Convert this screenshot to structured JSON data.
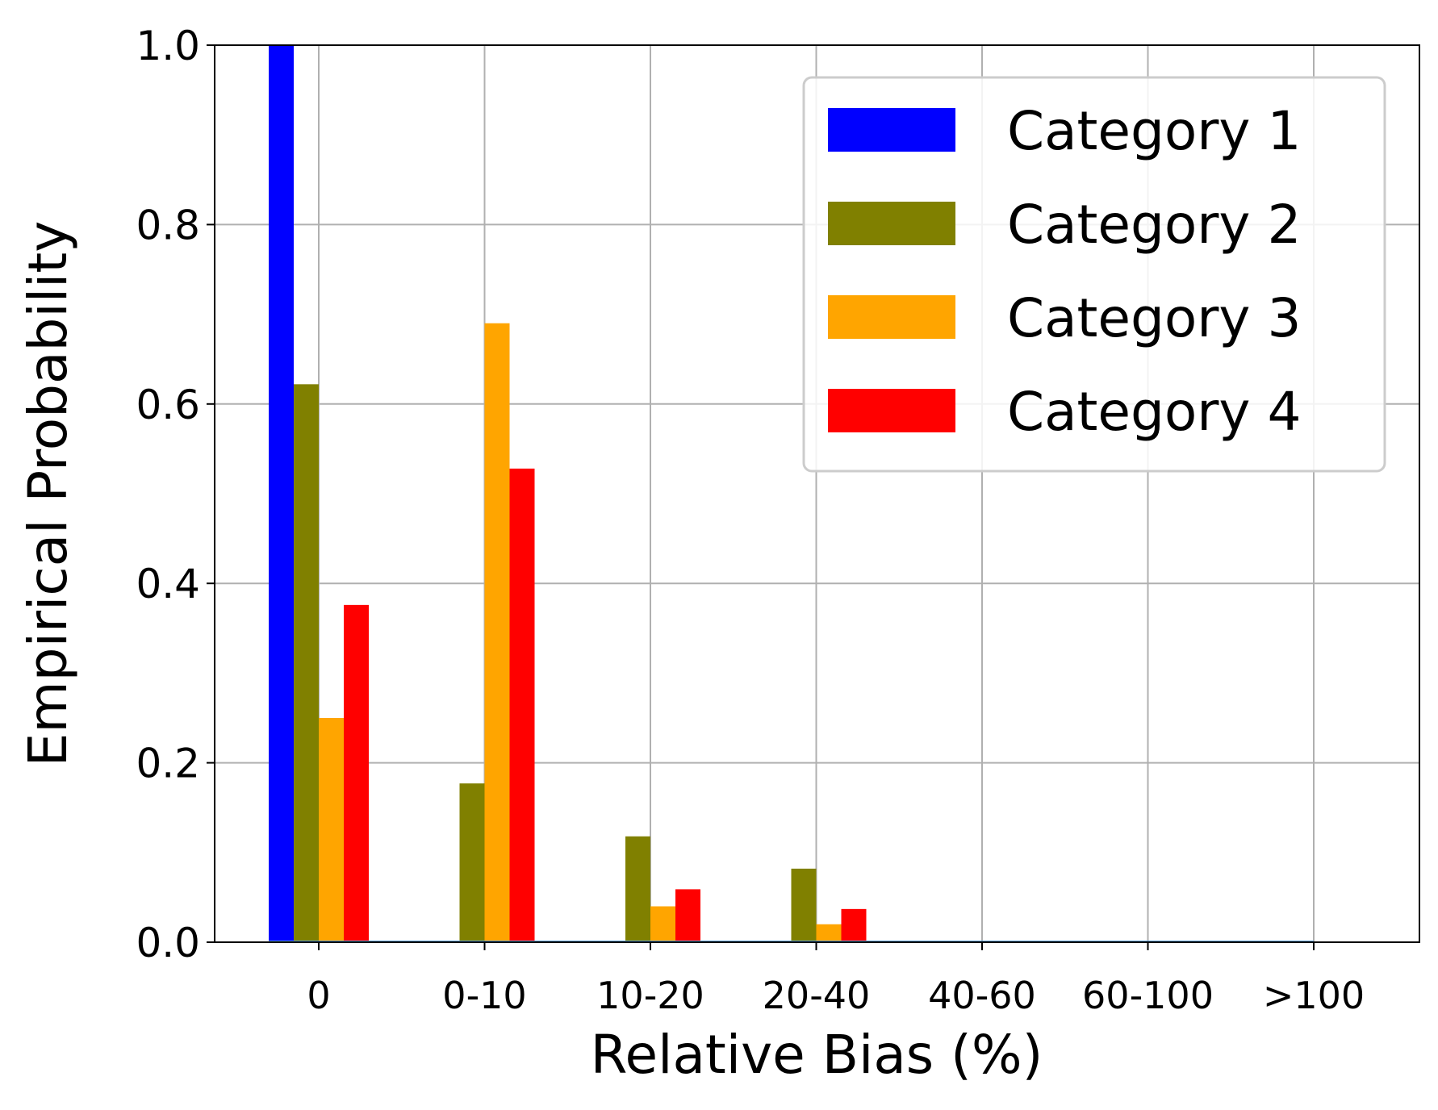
{
  "chart_data": {
    "type": "bar",
    "xlabel": "Relative Bias (%)",
    "ylabel": "Empirical Probability",
    "categories": [
      "0",
      "0-10",
      "10-20",
      "20-40",
      "40-60",
      "60-100",
      ">100"
    ],
    "ylim": [
      0,
      1.0
    ],
    "yticks": [
      0.0,
      0.2,
      0.4,
      0.6,
      0.8,
      1.0
    ],
    "ytick_labels": [
      "0.0",
      "0.2",
      "0.4",
      "0.6",
      "0.8",
      "1.0"
    ],
    "grid": true,
    "legend_position": "top-right",
    "series": [
      {
        "name": "Category 1",
        "color": "#0000ff",
        "values": [
          1.0,
          0.0,
          0.0,
          0.0,
          0.0,
          0.0,
          0.0
        ]
      },
      {
        "name": "Category 2",
        "color": "#808000",
        "values": [
          0.622,
          0.177,
          0.118,
          0.082,
          0.0,
          0.0,
          0.0
        ]
      },
      {
        "name": "Category 3",
        "color": "#ffa500",
        "values": [
          0.25,
          0.69,
          0.04,
          0.02,
          0.0,
          0.0,
          0.0
        ]
      },
      {
        "name": "Category 4",
        "color": "#ff0000",
        "values": [
          0.376,
          0.528,
          0.059,
          0.037,
          0.0,
          0.0,
          0.0
        ]
      }
    ]
  }
}
